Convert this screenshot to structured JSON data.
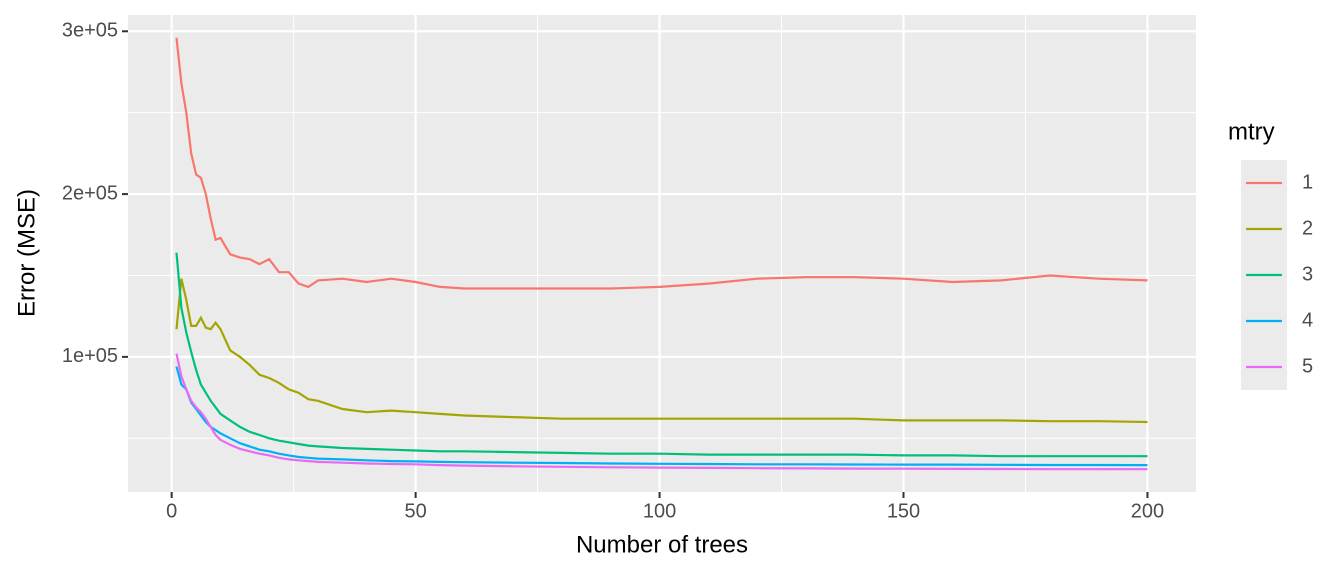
{
  "chart_data": {
    "type": "line",
    "x_label": "Number of trees",
    "y_label": "Error (MSE)",
    "legend_title": "mtry",
    "x": [
      1,
      2,
      3,
      4,
      5,
      6,
      7,
      8,
      9,
      10,
      12,
      14,
      16,
      18,
      20,
      22,
      24,
      26,
      28,
      30,
      35,
      40,
      45,
      50,
      55,
      60,
      70,
      80,
      90,
      100,
      110,
      120,
      130,
      140,
      150,
      160,
      170,
      180,
      190,
      200
    ],
    "series": [
      {
        "name": "1",
        "color": "#F8766D",
        "values": [
          296000,
          268000,
          250000,
          225000,
          212000,
          210000,
          200000,
          185000,
          172000,
          173000,
          163000,
          161000,
          160000,
          157000,
          160000,
          152000,
          152000,
          145000,
          143000,
          147000,
          148000,
          146000,
          148000,
          146000,
          143000,
          142000,
          142000,
          142000,
          142000,
          143000,
          145000,
          148000,
          149000,
          149000,
          148000,
          146000,
          147000,
          150000,
          148000,
          147000
        ]
      },
      {
        "name": "2",
        "color": "#A3A500",
        "values": [
          117000,
          148000,
          135000,
          119000,
          119000,
          124000,
          118000,
          117000,
          121000,
          117000,
          104000,
          100000,
          95000,
          89000,
          87000,
          84000,
          80000,
          78000,
          74000,
          73000,
          68000,
          66000,
          67000,
          66000,
          65000,
          64000,
          63000,
          62000,
          62000,
          62000,
          62000,
          62000,
          62000,
          62000,
          61000,
          61000,
          61000,
          60500,
          60500,
          60000
        ]
      },
      {
        "name": "3",
        "color": "#00BF7D",
        "values": [
          164000,
          130000,
          115000,
          103000,
          92000,
          83000,
          78000,
          73000,
          69000,
          65000,
          61000,
          57000,
          54000,
          52000,
          50000,
          48500,
          47500,
          46500,
          45500,
          45000,
          44000,
          43500,
          43000,
          42500,
          42000,
          42000,
          41500,
          41000,
          40500,
          40500,
          40000,
          40000,
          40000,
          40000,
          39500,
          39500,
          39000,
          39000,
          39000,
          39000
        ]
      },
      {
        "name": "4",
        "color": "#00B0F6",
        "values": [
          94000,
          83000,
          80000,
          72000,
          68000,
          64000,
          60000,
          57000,
          55000,
          53000,
          50000,
          47000,
          45000,
          43000,
          42000,
          40500,
          39500,
          38500,
          38000,
          37500,
          37000,
          36500,
          36000,
          35800,
          35500,
          35300,
          35000,
          34800,
          34500,
          34300,
          34200,
          34000,
          34000,
          33900,
          33800,
          33800,
          33700,
          33600,
          33600,
          33500
        ]
      },
      {
        "name": "5",
        "color": "#E76BF3",
        "values": [
          102000,
          88000,
          80000,
          73000,
          69000,
          66000,
          62000,
          57000,
          52000,
          49000,
          46000,
          43500,
          42000,
          40500,
          39500,
          38000,
          37000,
          36500,
          36000,
          35500,
          35000,
          34500,
          34200,
          34000,
          33500,
          33200,
          32800,
          32500,
          32200,
          32000,
          31800,
          31600,
          31500,
          31400,
          31300,
          31200,
          31100,
          31000,
          31000,
          31000
        ]
      }
    ],
    "xlim": [
      -8.95,
      209.95
    ],
    "xticks": [
      0,
      50,
      100,
      150,
      200
    ],
    "xminor": [
      25,
      75,
      125,
      175
    ],
    "ylim": [
      17000,
      310000
    ],
    "yticks": [
      {
        "value": 100000,
        "label": "1e+05"
      },
      {
        "value": 200000,
        "label": "2e+05"
      },
      {
        "value": 300000,
        "label": "3e+05"
      }
    ],
    "yminor": [
      50000,
      150000,
      250000
    ],
    "grid": true
  }
}
